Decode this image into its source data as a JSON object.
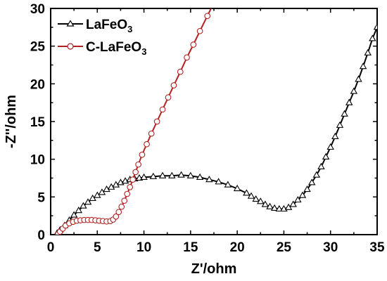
{
  "chart_data": {
    "type": "scatter",
    "title": "",
    "xlabel": "Z'/ohm",
    "ylabel": "-Z''/ohm",
    "xlim": [
      0,
      35
    ],
    "ylim": [
      0,
      30
    ],
    "xticks": [
      0,
      5,
      10,
      15,
      20,
      25,
      30,
      35
    ],
    "yticks": [
      0,
      5,
      10,
      15,
      20,
      25,
      30
    ],
    "grid": false,
    "legend_position": "top-left",
    "series": [
      {
        "name": "LaFeO3",
        "name_parts": {
          "base": "LaFeO",
          "sub": "3"
        },
        "marker": "triangle",
        "color": "#000000",
        "x": [
          0.7,
          1.0,
          1.5,
          2.0,
          2.5,
          3.0,
          3.5,
          4.0,
          4.5,
          5.0,
          5.5,
          6.0,
          6.5,
          7.0,
          7.5,
          8.0,
          8.5,
          9.0,
          9.5,
          10.0,
          11.0,
          12.0,
          13.0,
          14.0,
          15.0,
          16.0,
          17.0,
          18.0,
          19.0,
          20.0,
          21.0,
          21.5,
          22.0,
          22.5,
          23.0,
          23.5,
          24.0,
          24.5,
          25.0,
          25.5,
          26.0,
          26.5,
          27.0,
          27.5,
          28.0,
          28.5,
          29.0,
          29.5,
          30.0,
          30.5,
          31.0,
          31.5,
          32.0,
          32.5,
          33.0,
          33.5,
          34.0,
          34.5,
          35.0
        ],
        "y": [
          0.2,
          0.6,
          1.2,
          1.9,
          2.6,
          3.2,
          3.8,
          4.3,
          4.8,
          5.2,
          5.6,
          6.0,
          6.3,
          6.6,
          6.9,
          7.1,
          7.3,
          7.4,
          7.5,
          7.6,
          7.7,
          7.8,
          7.8,
          7.9,
          7.8,
          7.6,
          7.3,
          7.0,
          6.6,
          6.1,
          5.5,
          5.1,
          4.7,
          4.4,
          4.0,
          3.7,
          3.5,
          3.4,
          3.4,
          3.6,
          4.0,
          4.6,
          5.2,
          6.0,
          6.9,
          7.9,
          9.0,
          10.3,
          11.6,
          13.0,
          14.5,
          16.0,
          17.5,
          19.0,
          20.6,
          22.3,
          24.1,
          26.0,
          27.5
        ]
      },
      {
        "name": "C-LaFeO3",
        "name_parts": {
          "base": "C-LaFeO",
          "sub": "3"
        },
        "marker": "circle",
        "color": "#b22222",
        "x": [
          0.8,
          1.0,
          1.3,
          1.6,
          2.0,
          2.4,
          2.8,
          3.2,
          3.6,
          4.0,
          4.4,
          4.8,
          5.2,
          5.6,
          6.0,
          6.4,
          6.7,
          7.0,
          7.3,
          7.6,
          7.9,
          8.2,
          8.5,
          8.8,
          9.1,
          9.4,
          9.8,
          10.3,
          10.8,
          11.4,
          12.0,
          12.6,
          13.2,
          13.9,
          14.6,
          15.3,
          16.0,
          16.8,
          17.6
        ],
        "y": [
          0.1,
          0.4,
          0.8,
          1.2,
          1.5,
          1.7,
          1.85,
          1.9,
          1.95,
          1.95,
          1.95,
          1.9,
          1.85,
          1.8,
          1.75,
          1.8,
          2.0,
          2.4,
          3.0,
          3.7,
          4.5,
          5.4,
          6.3,
          7.3,
          8.3,
          9.3,
          10.6,
          12.0,
          13.4,
          15.0,
          16.6,
          18.2,
          19.8,
          21.6,
          23.5,
          25.2,
          27.0,
          29.0,
          31.0
        ]
      }
    ]
  }
}
